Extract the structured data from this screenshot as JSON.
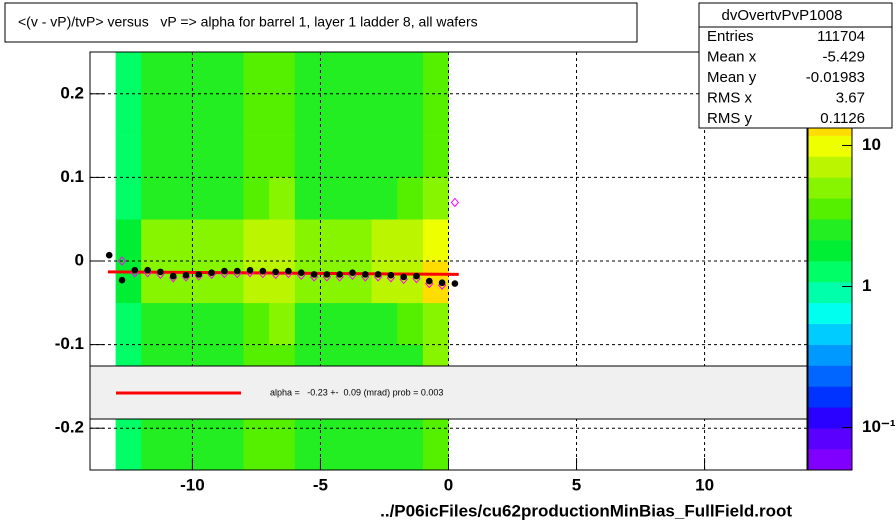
{
  "chart_data": {
    "type": "heatmap",
    "title": "<(v - vP)/tvP> versus   vP => alpha for barrel 1, layer 1 ladder 8, all wafers",
    "x_label": "../P06icFiles/cu62productionMinBias_FullField.root",
    "xlim": [
      -14,
      14
    ],
    "ylim": [
      -0.25,
      0.25
    ],
    "xticks": [
      -10,
      -5,
      0,
      5,
      10
    ],
    "yticks": [
      -0.2,
      -0.1,
      0,
      0.1,
      0.2
    ],
    "grid": true,
    "heatmap": {
      "xbins": [
        -13,
        -12,
        -11,
        -10,
        -9,
        -8,
        -7,
        -6,
        -5,
        -4,
        -3,
        -2,
        -1,
        0
      ],
      "ybins": [
        -0.25,
        -0.2,
        -0.15,
        -0.1,
        -0.05,
        0,
        0.05,
        0.1,
        0.15,
        0.2,
        0.25
      ],
      "z": [
        [
          1.5,
          3,
          3,
          3,
          3,
          4,
          4,
          3,
          3,
          3,
          3,
          3,
          4
        ],
        [
          1.5,
          3,
          3,
          3,
          3,
          4,
          4,
          3,
          3,
          3,
          3,
          3,
          4
        ],
        [
          1.5,
          3,
          3,
          3,
          3,
          4,
          4,
          3,
          3,
          3,
          3,
          3,
          5
        ],
        [
          1.5,
          3,
          3,
          3,
          3,
          4,
          5,
          3,
          3,
          3,
          3,
          4,
          5
        ],
        [
          2,
          5,
          5,
          5,
          5,
          7,
          8,
          5,
          5,
          5,
          6,
          6,
          12
        ],
        [
          2,
          5,
          5,
          5,
          5,
          7,
          8,
          5,
          5,
          5,
          6,
          6,
          10
        ],
        [
          1.5,
          3,
          3,
          3,
          3,
          4,
          5,
          3,
          3,
          3,
          3,
          4,
          5
        ],
        [
          1.5,
          3,
          3,
          3,
          3,
          4,
          4,
          3,
          3,
          3,
          3,
          3,
          4
        ],
        [
          1.5,
          3,
          3,
          3,
          3,
          4,
          4,
          3,
          3,
          3,
          3,
          3,
          4
        ],
        [
          1.5,
          3,
          3,
          3,
          3,
          4,
          4,
          3,
          3,
          3,
          3,
          3,
          4
        ]
      ]
    },
    "zscale": "log",
    "zlim": [
      0.05,
      46
    ],
    "zticks": [
      {
        "value": 0.1,
        "label": "10⁻¹"
      },
      1,
      10
    ],
    "palette": [
      "#7f00ff",
      "#5a00ff",
      "#2a00ff",
      "#0033ff",
      "#0066ff",
      "#0099ff",
      "#00ccff",
      "#00ffee",
      "#00ffaa",
      "#00ff66",
      "#00ee33",
      "#22ee22",
      "#55f000",
      "#88f500",
      "#bbf500",
      "#eeff00",
      "#ffdd00",
      "#ffaa00",
      "#ff6600",
      "#ff0000"
    ],
    "profile": {
      "color": "#000000",
      "x": [
        -13.25,
        -12.75,
        -12.25,
        -11.75,
        -11.25,
        -10.75,
        -10.25,
        -9.75,
        -9.25,
        -8.75,
        -8.25,
        -7.75,
        -7.25,
        -6.75,
        -6.25,
        -5.75,
        -5.25,
        -4.75,
        -4.25,
        -3.75,
        -3.25,
        -2.75,
        -2.25,
        -1.75,
        -1.25,
        -0.75,
        -0.25,
        0.25
      ],
      "values": [
        0.007,
        -0.023,
        -0.011,
        -0.011,
        -0.013,
        -0.018,
        -0.017,
        -0.016,
        -0.014,
        -0.012,
        -0.012,
        -0.011,
        -0.012,
        -0.013,
        -0.012,
        -0.014,
        -0.016,
        -0.016,
        -0.016,
        -0.014,
        -0.016,
        -0.016,
        -0.017,
        -0.019,
        -0.018,
        -0.024,
        -0.026,
        -0.027
      ]
    },
    "profile2": {
      "color": "#ff00ff",
      "x": [
        -13.25,
        -12.75,
        -12.25,
        -11.75,
        -11.25,
        -10.75,
        -10.25,
        -9.75,
        -9.25,
        -8.75,
        -8.25,
        -7.75,
        -7.25,
        -6.75,
        -6.25,
        -5.75,
        -5.25,
        -4.75,
        -4.25,
        -3.75,
        -3.25,
        -2.75,
        -2.25,
        -1.75,
        -1.25,
        -0.75,
        -0.25,
        0.25
      ],
      "values": [
        null,
        0.0,
        -0.014,
        -0.014,
        -0.016,
        -0.02,
        -0.019,
        -0.018,
        -0.016,
        -0.015,
        -0.015,
        -0.014,
        -0.015,
        -0.016,
        -0.015,
        -0.017,
        -0.019,
        -0.019,
        -0.019,
        -0.017,
        -0.019,
        -0.019,
        -0.02,
        -0.022,
        -0.021,
        -0.027,
        -0.029,
        0.07
      ]
    },
    "fit": {
      "color": "#ff0000",
      "x": [
        -13.3,
        0.4
      ],
      "values": [
        -0.013,
        -0.016
      ]
    },
    "legend_text": "alpha =   -0.23 +-  0.09 (mrad) prob = 0.003",
    "stats": {
      "title": "dvOvertvPvP1008",
      "rows": [
        [
          "Entries",
          "111704"
        ],
        [
          "Mean x",
          "-5.429"
        ],
        [
          "Mean y",
          "-0.01983"
        ],
        [
          "RMS x",
          "3.67"
        ],
        [
          "RMS y",
          "0.1126"
        ]
      ]
    }
  }
}
